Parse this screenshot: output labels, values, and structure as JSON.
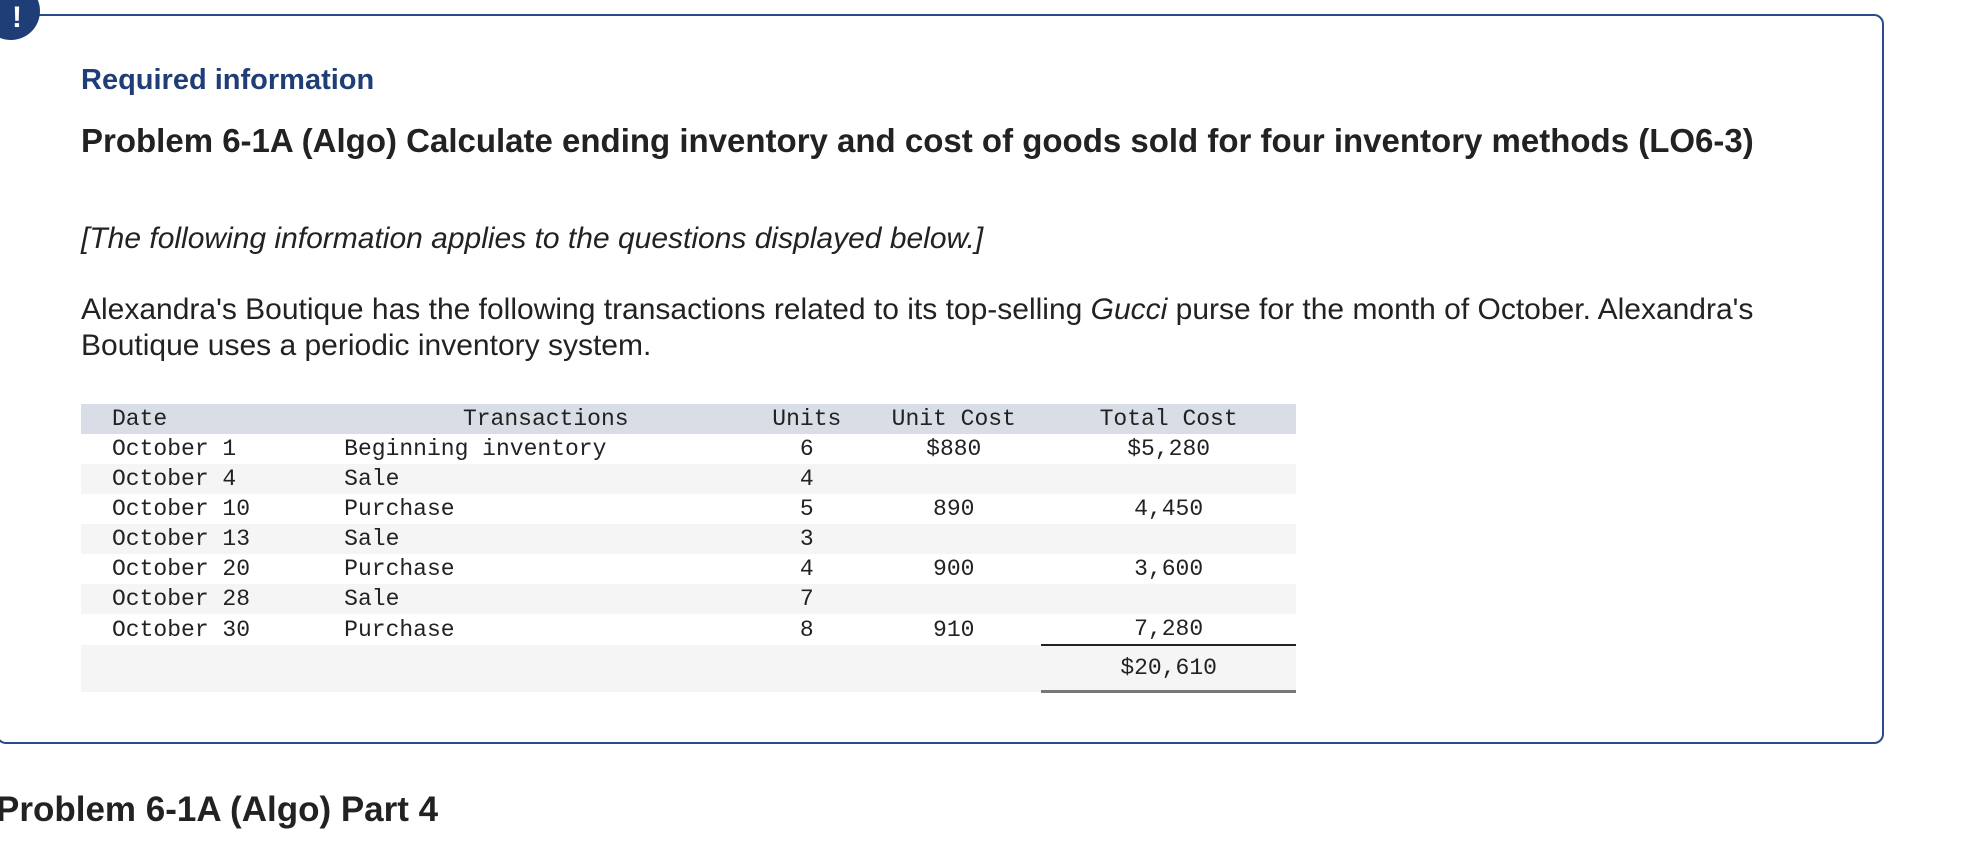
{
  "badge": {
    "symbol": "!"
  },
  "header": {
    "required_info": "Required information",
    "problem_title": "Problem 6-1A (Algo) Calculate ending inventory and cost of goods sold for four inventory methods (LO6-3)",
    "note": "[The following information applies to the questions displayed below.]",
    "description_before": "Alexandra's Boutique has the following transactions related to its top-selling ",
    "description_italic": "Gucci",
    "description_after": " purse for the month of October. Alexandra's Boutique uses a periodic inventory system."
  },
  "table": {
    "columns": {
      "date": "Date",
      "transactions": "Transactions",
      "units": "Units",
      "unit_cost": "Unit Cost",
      "total_cost": "Total Cost"
    },
    "rows": [
      {
        "date": "October 1",
        "transaction": "Beginning inventory",
        "units": "6",
        "unit_cost": "$880",
        "total_cost": "$5,280"
      },
      {
        "date": "October 4",
        "transaction": "Sale",
        "units": "4",
        "unit_cost": "",
        "total_cost": ""
      },
      {
        "date": "October 10",
        "transaction": "Purchase",
        "units": "5",
        "unit_cost": "890",
        "total_cost": "4,450"
      },
      {
        "date": "October 13",
        "transaction": "Sale",
        "units": "3",
        "unit_cost": "",
        "total_cost": ""
      },
      {
        "date": "October 20",
        "transaction": "Purchase",
        "units": "4",
        "unit_cost": "900",
        "total_cost": "3,600"
      },
      {
        "date": "October 28",
        "transaction": "Sale",
        "units": "7",
        "unit_cost": "",
        "total_cost": ""
      },
      {
        "date": "October 30",
        "transaction": "Purchase",
        "units": "8",
        "unit_cost": "910",
        "total_cost": "7,280"
      }
    ],
    "grand_total": "$20,610"
  },
  "part": {
    "title": "Problem 6-1A (Algo) Part 4"
  },
  "colors": {
    "accent": "#1f3e78",
    "header_row": "#d8dde6",
    "stripe": "#f5f5f5"
  }
}
